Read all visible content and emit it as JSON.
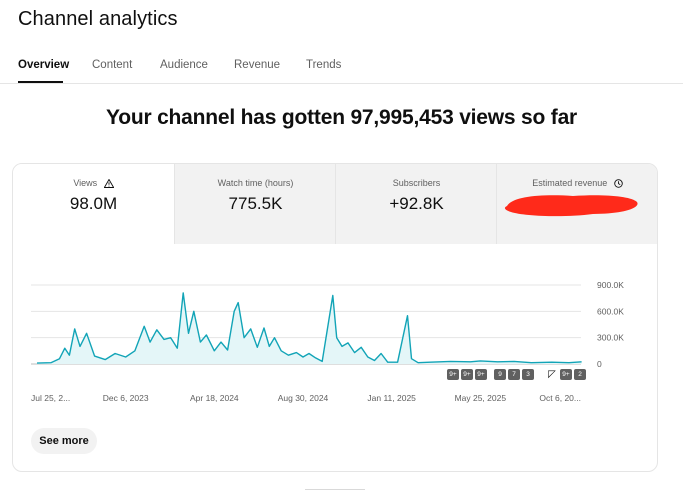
{
  "page": {
    "title": "Channel analytics",
    "headline": "Your channel has gotten 97,995,453 views so far"
  },
  "tabs": [
    {
      "label": "Overview",
      "active": true
    },
    {
      "label": "Content",
      "active": false
    },
    {
      "label": "Audience",
      "active": false
    },
    {
      "label": "Revenue",
      "active": false
    },
    {
      "label": "Trends",
      "active": false
    }
  ],
  "metrics": [
    {
      "label": "Views",
      "value": "98.0M",
      "icon": "warning-icon"
    },
    {
      "label": "Watch time (hours)",
      "value": "775.5K"
    },
    {
      "label": "Subscribers",
      "value": "+92.8K"
    },
    {
      "label": "Estimated revenue",
      "value": "",
      "icon": "clock-icon"
    }
  ],
  "chart_data": {
    "type": "area",
    "y_ticks": [
      "900.0K",
      "600.0K",
      "300.0K",
      "0"
    ],
    "ylim": [
      0,
      900000
    ],
    "x_tick_labels": [
      "Jul 25, 2...",
      "Dec 6, 2023",
      "Apr 18, 2024",
      "Aug 30, 2024",
      "Jan 11, 2025",
      "May 25, 2025",
      "Oct 6, 20..."
    ],
    "x_tick_dates": [
      "2023-07-25",
      "2023-12-06",
      "2024-04-18",
      "2024-08-30",
      "2025-01-11",
      "2025-05-25",
      "2025-10-06"
    ],
    "series": [
      {
        "color": "#12a4b7",
        "points": [
          [
            "2023-07-25",
            10000
          ],
          [
            "2023-08-15",
            15000
          ],
          [
            "2023-08-28",
            60000
          ],
          [
            "2023-09-05",
            180000
          ],
          [
            "2023-09-12",
            100000
          ],
          [
            "2023-09-20",
            400000
          ],
          [
            "2023-09-28",
            200000
          ],
          [
            "2023-10-08",
            350000
          ],
          [
            "2023-10-20",
            90000
          ],
          [
            "2023-11-05",
            50000
          ],
          [
            "2023-11-20",
            120000
          ],
          [
            "2023-12-06",
            80000
          ],
          [
            "2023-12-20",
            150000
          ],
          [
            "2024-01-03",
            430000
          ],
          [
            "2024-01-12",
            250000
          ],
          [
            "2024-01-22",
            390000
          ],
          [
            "2024-02-02",
            280000
          ],
          [
            "2024-02-12",
            300000
          ],
          [
            "2024-02-22",
            180000
          ],
          [
            "2024-03-02",
            810000
          ],
          [
            "2024-03-10",
            350000
          ],
          [
            "2024-03-18",
            600000
          ],
          [
            "2024-03-28",
            250000
          ],
          [
            "2024-04-06",
            330000
          ],
          [
            "2024-04-18",
            150000
          ],
          [
            "2024-04-28",
            250000
          ],
          [
            "2024-05-08",
            160000
          ],
          [
            "2024-05-18",
            600000
          ],
          [
            "2024-05-24",
            700000
          ],
          [
            "2024-06-02",
            300000
          ],
          [
            "2024-06-12",
            400000
          ],
          [
            "2024-06-22",
            190000
          ],
          [
            "2024-07-02",
            410000
          ],
          [
            "2024-07-10",
            200000
          ],
          [
            "2024-07-18",
            300000
          ],
          [
            "2024-07-28",
            150000
          ],
          [
            "2024-08-08",
            100000
          ],
          [
            "2024-08-20",
            130000
          ],
          [
            "2024-08-30",
            80000
          ],
          [
            "2024-09-08",
            120000
          ],
          [
            "2024-09-18",
            70000
          ],
          [
            "2024-09-28",
            30000
          ],
          [
            "2024-10-14",
            780000
          ],
          [
            "2024-10-20",
            300000
          ],
          [
            "2024-10-28",
            200000
          ],
          [
            "2024-11-06",
            240000
          ],
          [
            "2024-11-16",
            130000
          ],
          [
            "2024-11-26",
            190000
          ],
          [
            "2024-12-06",
            80000
          ],
          [
            "2024-12-16",
            40000
          ],
          [
            "2024-12-26",
            120000
          ],
          [
            "2025-01-05",
            20000
          ],
          [
            "2025-01-11",
            20000
          ],
          [
            "2025-01-20",
            20000
          ],
          [
            "2025-02-04",
            550000
          ],
          [
            "2025-02-10",
            60000
          ],
          [
            "2025-02-20",
            15000
          ],
          [
            "2025-03-10",
            20000
          ],
          [
            "2025-04-10",
            30000
          ],
          [
            "2025-05-10",
            25000
          ],
          [
            "2025-05-25",
            35000
          ],
          [
            "2025-06-20",
            25000
          ],
          [
            "2025-07-15",
            30000
          ],
          [
            "2025-08-10",
            15000
          ],
          [
            "2025-09-10",
            20000
          ],
          [
            "2025-10-06",
            15000
          ],
          [
            "2025-10-25",
            25000
          ]
        ]
      }
    ],
    "grid": true,
    "annotation_badges": [
      "9+",
      "9+",
      "9+",
      "9",
      "7",
      "3",
      "9+",
      "2"
    ]
  },
  "actions": {
    "see_more": "See more"
  },
  "colors": {
    "line": "#12a4b7",
    "fill": "#e4f6f8",
    "redaction": "#ff2a1a"
  }
}
